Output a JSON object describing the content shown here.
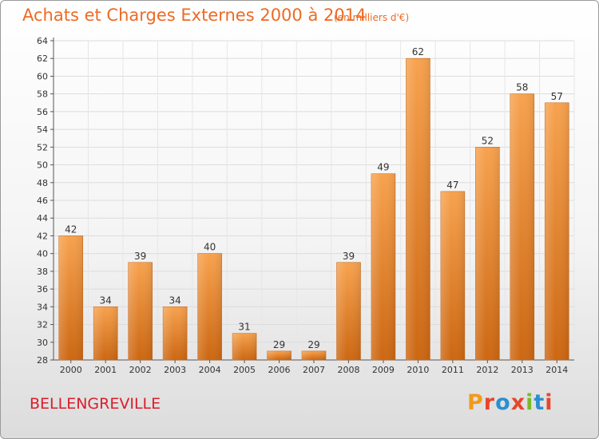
{
  "header": {
    "title": "Achats et Charges Externes 2000 à 2014",
    "subtitle": "(en milliers d'€)"
  },
  "footer": {
    "place": "BELLENGREVILLE",
    "logo_text": "Proxiti",
    "logo_colors": [
      "#f29a1b",
      "#e8452c",
      "#2a8fd0",
      "#e8452c",
      "#7bb928",
      "#2a8fd0",
      "#e8452c"
    ]
  },
  "chart_data": {
    "type": "bar",
    "categories": [
      "2000",
      "2001",
      "2002",
      "2003",
      "2004",
      "2005",
      "2006",
      "2007",
      "2008",
      "2009",
      "2010",
      "2011",
      "2012",
      "2013",
      "2014"
    ],
    "values": [
      42,
      34,
      39,
      34,
      40,
      31,
      29,
      29,
      39,
      49,
      62,
      47,
      52,
      58,
      57
    ],
    "title": "Achats et Charges Externes 2000 à 2014",
    "unit": "(en milliers d'€)",
    "xlabel": "",
    "ylabel": "",
    "ylim": [
      28,
      64
    ],
    "yticks": [
      28,
      30,
      32,
      34,
      36,
      38,
      40,
      42,
      44,
      46,
      48,
      50,
      52,
      54,
      56,
      58,
      60,
      62,
      64
    ],
    "grid": true,
    "bar_color_top": "#f7a24e",
    "bar_color_bottom": "#cc6712"
  }
}
